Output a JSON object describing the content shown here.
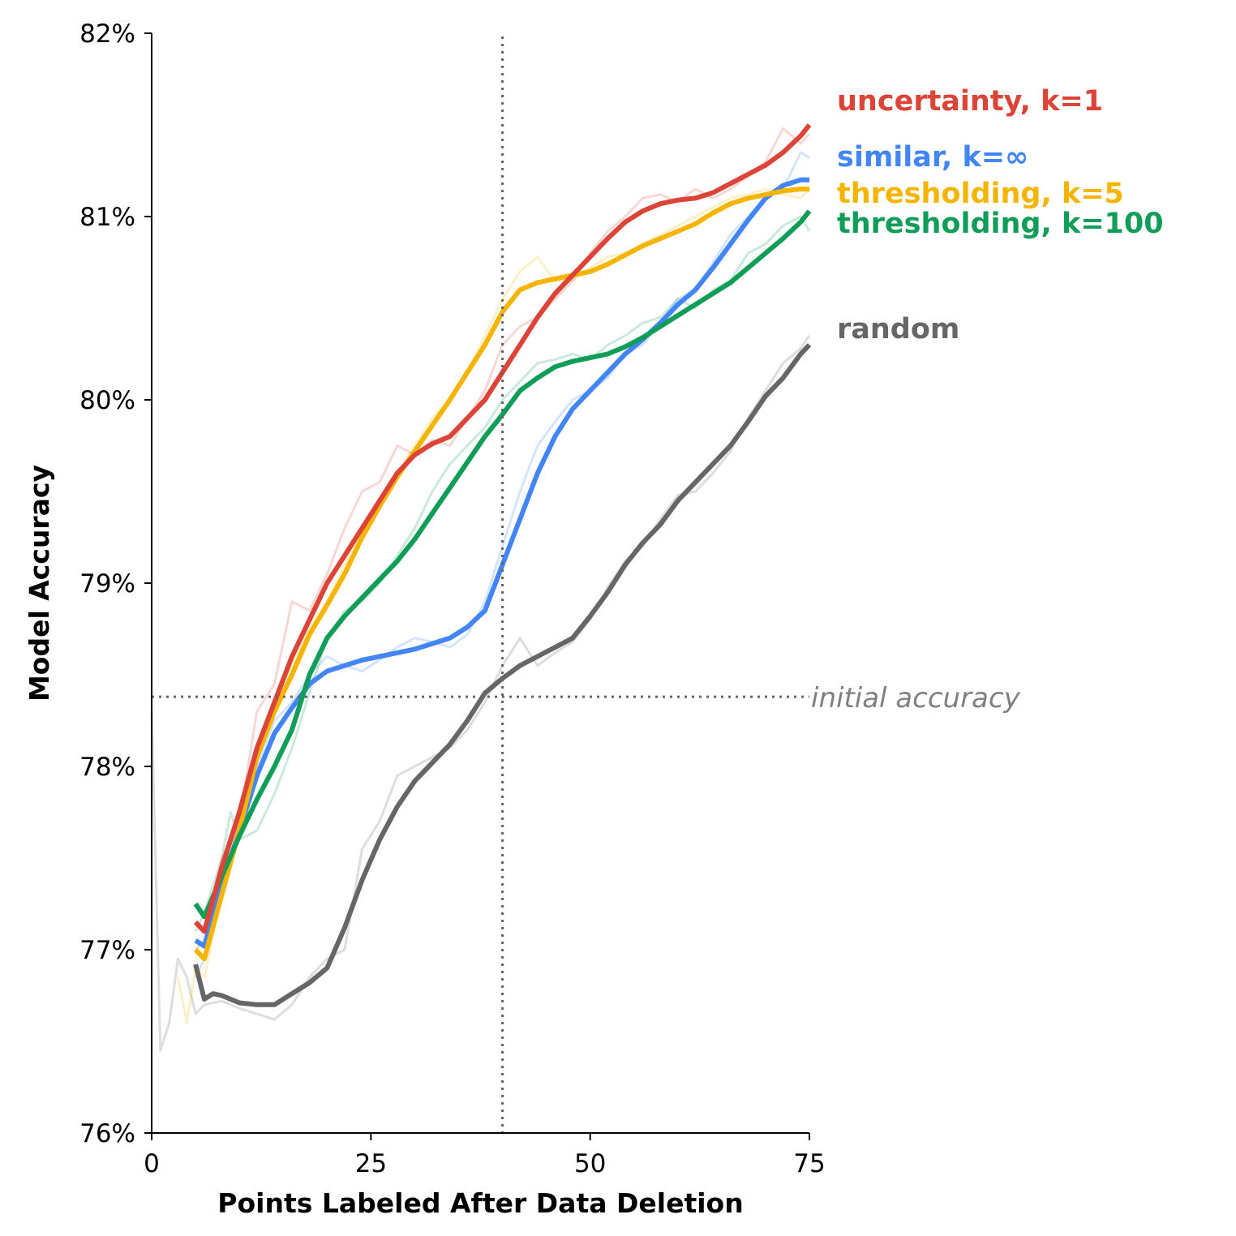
{
  "chart_data": {
    "type": "line",
    "xlabel": "Points Labeled After Data Deletion",
    "ylabel": "Model Accuracy",
    "xlim": [
      0,
      75
    ],
    "ylim": [
      76,
      82
    ],
    "xticks": [
      0,
      25,
      50,
      75
    ],
    "yticks": [
      76,
      77,
      78,
      79,
      80,
      81,
      82
    ],
    "ytick_labels": [
      "76%",
      "77%",
      "78%",
      "79%",
      "80%",
      "81%",
      "82%"
    ],
    "xtick_labels": [
      "0",
      "25",
      "50",
      "75"
    ],
    "grid": false,
    "initial_accuracy": 78.38,
    "initial_accuracy_label": "initial accuracy",
    "vertical_reference_x": 40,
    "series": [
      {
        "name": "random",
        "color": "#666666",
        "smoothed": {
          "x": [
            5,
            6,
            7,
            8,
            10,
            12,
            14,
            16,
            18,
            20,
            22,
            24,
            26,
            28,
            30,
            32,
            34,
            36,
            38,
            40,
            42,
            44,
            46,
            48,
            50,
            52,
            54,
            56,
            58,
            60,
            62,
            64,
            66,
            68,
            70,
            72,
            74,
            75
          ],
          "y": [
            76.92,
            76.73,
            76.76,
            76.75,
            76.71,
            76.7,
            76.7,
            76.76,
            76.82,
            76.9,
            77.12,
            77.38,
            77.6,
            77.78,
            77.92,
            78.02,
            78.12,
            78.25,
            78.4,
            78.48,
            78.55,
            78.6,
            78.65,
            78.7,
            78.82,
            78.95,
            79.1,
            79.22,
            79.32,
            79.45,
            79.55,
            79.65,
            79.75,
            79.88,
            80.02,
            80.12,
            80.25,
            80.3
          ]
        },
        "raw": {
          "x": [
            0,
            1,
            2,
            3,
            4,
            5,
            6,
            8,
            10,
            12,
            14,
            16,
            18,
            20,
            22,
            24,
            26,
            28,
            30,
            32,
            34,
            36,
            38,
            40,
            42,
            44,
            46,
            48,
            50,
            52,
            54,
            56,
            58,
            60,
            62,
            64,
            66,
            68,
            70,
            72,
            74,
            75
          ],
          "y": [
            78.3,
            76.45,
            76.6,
            76.95,
            76.85,
            76.65,
            76.7,
            76.72,
            76.68,
            76.65,
            76.62,
            76.7,
            76.85,
            76.95,
            77.0,
            77.55,
            77.7,
            77.95,
            78.0,
            78.05,
            78.1,
            78.2,
            78.35,
            78.55,
            78.7,
            78.55,
            78.62,
            78.68,
            78.8,
            78.98,
            79.12,
            79.2,
            79.35,
            79.48,
            79.5,
            79.6,
            79.72,
            79.9,
            80.05,
            80.2,
            80.28,
            80.35
          ]
        }
      },
      {
        "name": "similar, k=∞",
        "color": "#4285F4",
        "smoothed": {
          "x": [
            5,
            6,
            8,
            10,
            12,
            14,
            16,
            18,
            20,
            22,
            24,
            26,
            28,
            30,
            32,
            34,
            36,
            38,
            40,
            42,
            44,
            46,
            48,
            50,
            52,
            54,
            56,
            58,
            60,
            62,
            64,
            66,
            68,
            70,
            72,
            74,
            75
          ],
          "y": [
            77.05,
            77.02,
            77.35,
            77.65,
            77.95,
            78.18,
            78.32,
            78.45,
            78.52,
            78.55,
            78.58,
            78.6,
            78.62,
            78.64,
            78.67,
            78.7,
            78.76,
            78.85,
            79.1,
            79.35,
            79.6,
            79.8,
            79.95,
            80.05,
            80.15,
            80.25,
            80.33,
            80.42,
            80.52,
            80.6,
            80.72,
            80.85,
            80.98,
            81.1,
            81.17,
            81.2,
            81.2
          ]
        },
        "raw": {
          "x": [
            5,
            6,
            8,
            10,
            12,
            14,
            16,
            18,
            20,
            22,
            24,
            26,
            28,
            30,
            32,
            34,
            36,
            38,
            40,
            42,
            44,
            46,
            48,
            50,
            52,
            54,
            56,
            58,
            60,
            62,
            64,
            66,
            68,
            70,
            72,
            74,
            75
          ],
          "y": [
            76.85,
            76.95,
            77.4,
            77.7,
            78.0,
            78.25,
            78.35,
            78.5,
            78.6,
            78.55,
            78.52,
            78.58,
            78.65,
            78.7,
            78.68,
            78.65,
            78.72,
            78.9,
            79.2,
            79.5,
            79.75,
            79.88,
            80.0,
            80.05,
            80.12,
            80.25,
            80.3,
            80.42,
            80.55,
            80.6,
            80.75,
            80.9,
            81.0,
            81.1,
            81.15,
            81.35,
            81.32
          ]
        }
      },
      {
        "name": "thresholding, k=5",
        "color": "#F4B400",
        "smoothed": {
          "x": [
            5,
            6,
            8,
            10,
            12,
            14,
            16,
            18,
            20,
            22,
            24,
            26,
            28,
            30,
            32,
            34,
            36,
            38,
            40,
            42,
            44,
            46,
            48,
            50,
            52,
            54,
            56,
            58,
            60,
            62,
            64,
            66,
            68,
            70,
            72,
            74,
            75
          ],
          "y": [
            77.0,
            76.95,
            77.3,
            77.65,
            78.05,
            78.3,
            78.5,
            78.72,
            78.88,
            79.05,
            79.25,
            79.42,
            79.58,
            79.72,
            79.86,
            80.0,
            80.15,
            80.3,
            80.48,
            80.6,
            80.64,
            80.66,
            80.68,
            80.7,
            80.74,
            80.79,
            80.84,
            80.88,
            80.92,
            80.96,
            81.02,
            81.07,
            81.1,
            81.12,
            81.14,
            81.15,
            81.15
          ]
        },
        "raw": {
          "x": [
            3,
            4,
            5,
            6,
            8,
            10,
            12,
            14,
            16,
            18,
            20,
            22,
            24,
            26,
            28,
            30,
            32,
            34,
            36,
            38,
            40,
            42,
            44,
            46,
            48,
            50,
            52,
            54,
            56,
            58,
            60,
            62,
            64,
            66,
            68,
            70,
            72,
            74,
            75
          ],
          "y": [
            76.85,
            76.6,
            76.9,
            76.85,
            77.3,
            77.75,
            78.1,
            78.35,
            78.55,
            78.75,
            78.9,
            79.1,
            79.3,
            79.45,
            79.6,
            79.75,
            79.9,
            80.0,
            80.15,
            80.35,
            80.55,
            80.7,
            80.78,
            80.65,
            80.65,
            80.72,
            80.78,
            80.8,
            80.85,
            80.9,
            80.95,
            81.0,
            81.05,
            81.1,
            81.12,
            81.15,
            81.12,
            81.1,
            81.15
          ]
        }
      },
      {
        "name": "thresholding, k=100",
        "color": "#0F9D58",
        "smoothed": {
          "x": [
            5,
            6,
            8,
            10,
            12,
            14,
            16,
            18,
            20,
            22,
            24,
            26,
            28,
            30,
            32,
            34,
            36,
            38,
            40,
            42,
            44,
            46,
            48,
            50,
            52,
            54,
            56,
            58,
            60,
            62,
            64,
            66,
            68,
            70,
            72,
            74,
            75
          ],
          "y": [
            77.25,
            77.18,
            77.4,
            77.62,
            77.82,
            78.0,
            78.2,
            78.5,
            78.7,
            78.82,
            78.92,
            79.02,
            79.12,
            79.24,
            79.38,
            79.52,
            79.66,
            79.8,
            79.92,
            80.05,
            80.12,
            80.18,
            80.21,
            80.23,
            80.25,
            80.29,
            80.34,
            80.4,
            80.46,
            80.52,
            80.58,
            80.64,
            80.72,
            80.8,
            80.88,
            80.97,
            81.03
          ]
        },
        "raw": {
          "x": [
            5,
            6,
            8,
            9,
            10,
            12,
            14,
            16,
            18,
            20,
            22,
            24,
            26,
            28,
            30,
            32,
            34,
            36,
            38,
            40,
            42,
            44,
            46,
            48,
            50,
            52,
            54,
            56,
            58,
            60,
            62,
            64,
            66,
            68,
            70,
            72,
            74,
            75
          ],
          "y": [
            77.1,
            77.2,
            77.5,
            77.75,
            77.6,
            77.65,
            77.85,
            78.1,
            78.4,
            78.7,
            78.85,
            78.9,
            79.0,
            79.15,
            79.3,
            79.5,
            79.65,
            79.75,
            79.85,
            80.0,
            80.1,
            80.2,
            80.22,
            80.25,
            80.22,
            80.3,
            80.35,
            80.42,
            80.45,
            80.55,
            80.5,
            80.6,
            80.65,
            80.8,
            80.85,
            80.95,
            81.0,
            80.92
          ]
        }
      },
      {
        "name": "uncertainty, k=1",
        "color": "#DB4437",
        "smoothed": {
          "x": [
            5,
            6,
            8,
            10,
            12,
            14,
            16,
            18,
            20,
            22,
            24,
            26,
            28,
            30,
            32,
            34,
            36,
            38,
            40,
            42,
            44,
            46,
            48,
            50,
            52,
            54,
            56,
            58,
            60,
            62,
            64,
            66,
            68,
            70,
            72,
            74,
            75
          ],
          "y": [
            77.15,
            77.1,
            77.45,
            77.75,
            78.1,
            78.35,
            78.6,
            78.8,
            79.0,
            79.15,
            79.3,
            79.45,
            79.6,
            79.7,
            79.76,
            79.8,
            79.9,
            80.0,
            80.15,
            80.3,
            80.45,
            80.58,
            80.68,
            80.78,
            80.88,
            80.97,
            81.03,
            81.07,
            81.09,
            81.1,
            81.13,
            81.18,
            81.23,
            81.28,
            81.35,
            81.44,
            81.5
          ]
        },
        "raw": {
          "x": [
            5,
            6,
            8,
            10,
            12,
            14,
            16,
            18,
            20,
            22,
            24,
            26,
            28,
            30,
            32,
            34,
            36,
            38,
            40,
            42,
            44,
            46,
            48,
            50,
            52,
            54,
            56,
            58,
            60,
            62,
            64,
            66,
            68,
            70,
            72,
            74,
            75
          ],
          "y": [
            77.0,
            77.05,
            77.5,
            77.7,
            78.3,
            78.45,
            78.9,
            78.85,
            79.05,
            79.3,
            79.5,
            79.55,
            79.75,
            79.7,
            79.78,
            79.75,
            79.9,
            80.05,
            80.3,
            80.4,
            80.45,
            80.55,
            80.65,
            80.8,
            80.92,
            81.0,
            81.1,
            81.12,
            81.08,
            81.15,
            81.1,
            81.15,
            81.22,
            81.3,
            81.48,
            81.4,
            81.45
          ]
        }
      }
    ],
    "labels_order": [
      "uncertainty, k=1",
      "similar, k=∞",
      "thresholding, k=5",
      "thresholding, k=100",
      "random"
    ]
  }
}
